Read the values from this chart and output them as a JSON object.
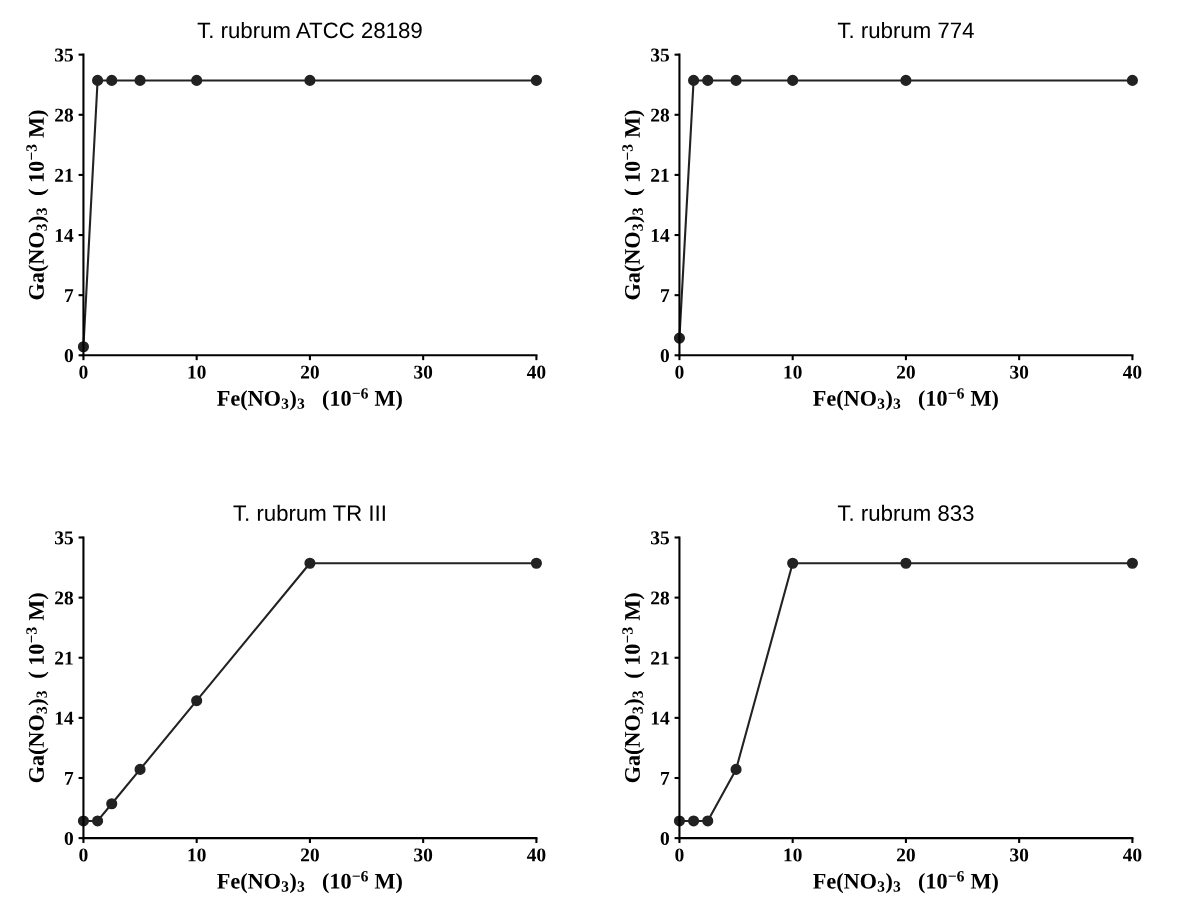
{
  "chart_data": [
    {
      "type": "line",
      "title": "T. rubrum ATCC 28189",
      "xlabel": "Fe(NO$_{3}$)$_{3}$   (10$^{−6}$ M)",
      "ylabel": "Ga(NO$_{3}$)$_{3}$  ( 10$^{−3}$ M)",
      "x": [
        0,
        1.25,
        2.5,
        5,
        10,
        20,
        40
      ],
      "series": [
        {
          "color": "#222222",
          "values": [
            1,
            32,
            32,
            32,
            32,
            32,
            32
          ]
        }
      ],
      "xlim": [
        0,
        40
      ],
      "xticks": [
        0,
        10,
        20,
        30,
        40
      ],
      "ylim": [
        0,
        35
      ],
      "yticks": [
        0,
        7,
        14,
        21,
        28,
        35
      ],
      "marker": "circle",
      "grid": false,
      "legend": false
    },
    {
      "type": "line",
      "title": "T. rubrum 774",
      "xlabel": "Fe(NO$_{3}$)$_{3}$   (10$^{−6}$ M)",
      "ylabel": "Ga(NO$_{3}$)$_{3}$  ( 10$^{−3}$ M)",
      "x": [
        0,
        1.25,
        2.5,
        5,
        10,
        20,
        40
      ],
      "series": [
        {
          "color": "#222222",
          "values": [
            2,
            32,
            32,
            32,
            32,
            32,
            32
          ]
        }
      ],
      "xlim": [
        0,
        40
      ],
      "xticks": [
        0,
        10,
        20,
        30,
        40
      ],
      "ylim": [
        0,
        35
      ],
      "yticks": [
        0,
        7,
        14,
        21,
        28,
        35
      ],
      "marker": "circle",
      "grid": false,
      "legend": false
    },
    {
      "type": "line",
      "title": "T. rubrum TR III",
      "xlabel": "Fe(NO$_{3}$)$_{3}$   (10$^{−6}$ M)",
      "ylabel": "Ga(NO$_{3}$)$_{3}$  ( 10$^{−3}$ M)",
      "x": [
        0,
        1.25,
        2.5,
        5,
        10,
        20,
        40
      ],
      "series": [
        {
          "color": "#222222",
          "values": [
            2,
            2,
            4,
            8,
            16,
            32,
            32
          ]
        }
      ],
      "xlim": [
        0,
        40
      ],
      "xticks": [
        0,
        10,
        20,
        30,
        40
      ],
      "ylim": [
        0,
        35
      ],
      "yticks": [
        0,
        7,
        14,
        21,
        28,
        35
      ],
      "marker": "circle",
      "grid": false,
      "legend": false
    },
    {
      "type": "line",
      "title": "T. rubrum 833",
      "xlabel": "Fe(NO$_{3}$)$_{3}$   (10$^{−6}$ M)",
      "ylabel": "Ga(NO$_{3}$)$_{3}$  ( 10$^{−3}$ M)",
      "x": [
        0,
        1.25,
        2.5,
        5,
        10,
        20,
        40
      ],
      "series": [
        {
          "color": "#222222",
          "values": [
            2,
            2,
            2,
            8,
            32,
            32,
            32
          ]
        }
      ],
      "xlim": [
        0,
        40
      ],
      "xticks": [
        0,
        10,
        20,
        30,
        40
      ],
      "ylim": [
        0,
        35
      ],
      "yticks": [
        0,
        7,
        14,
        21,
        28,
        35
      ],
      "marker": "circle",
      "grid": false,
      "legend": false
    }
  ]
}
